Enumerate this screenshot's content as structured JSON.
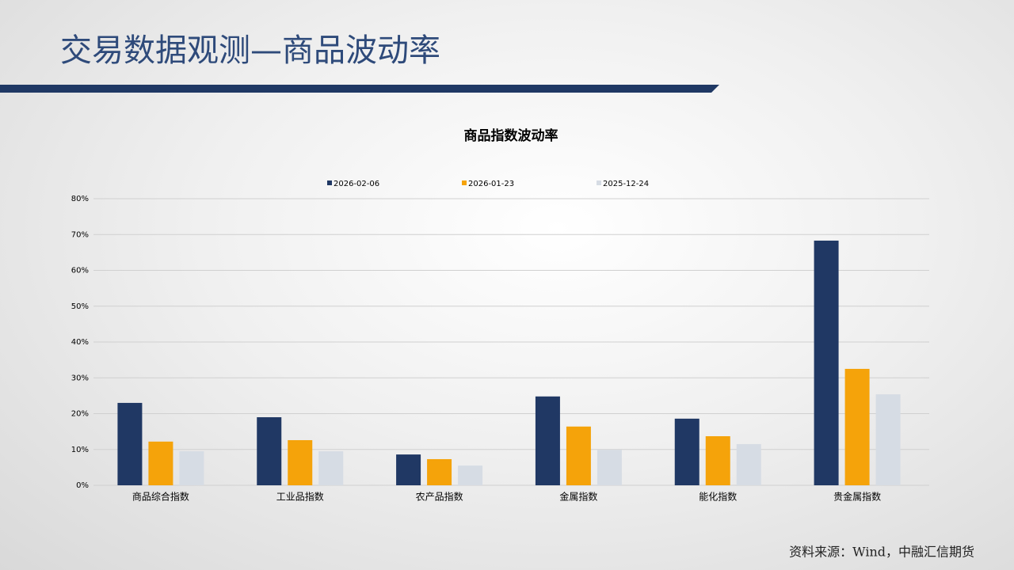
{
  "slide_title": "交易数据观测—商品波动率",
  "source": "资料来源：Wind，中融汇信期货",
  "chart_data": {
    "type": "bar",
    "title": "商品指数波动率",
    "categories": [
      "商品综合指数",
      "工业品指数",
      "农产品指数",
      "金属指数",
      "能化指数",
      "贵金属指数"
    ],
    "series": [
      {
        "name": "2026-02-06",
        "color": "#203864",
        "values": [
          23.0,
          19.0,
          8.6,
          24.8,
          18.6,
          68.3
        ]
      },
      {
        "name": "2026-01-23",
        "color": "#f5a30a",
        "values": [
          12.2,
          12.6,
          7.3,
          16.4,
          13.7,
          32.5
        ]
      },
      {
        "name": "2025-12-24",
        "color": "#d6dce4",
        "values": [
          9.5,
          9.5,
          5.5,
          9.9,
          11.5,
          25.4
        ]
      }
    ],
    "ylim": [
      0,
      80
    ],
    "yticks": [
      {
        "value": 0,
        "label": "0%"
      },
      {
        "value": 10,
        "label": "10%"
      },
      {
        "value": 20,
        "label": "20%"
      },
      {
        "value": 30,
        "label": "30%"
      },
      {
        "value": 40,
        "label": "40%"
      },
      {
        "value": 50,
        "label": "50%"
      },
      {
        "value": 60,
        "label": "60%"
      },
      {
        "value": 70,
        "label": "70%"
      },
      {
        "value": 80,
        "label": "80%"
      }
    ],
    "grid": true,
    "legend": "top"
  }
}
